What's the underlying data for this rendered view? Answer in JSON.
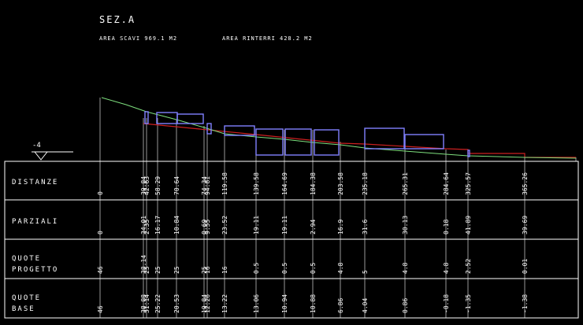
{
  "header": {
    "title": "SEZ.A",
    "area_scavi": "AREA SCAVI 969.1 M2",
    "area_rinterri": "AREA RINTERRI 428.2 M2"
  },
  "datum": {
    "label": "-4"
  },
  "rows": {
    "distanze": "DISTANZE",
    "parziali": "PARZIALI",
    "progetto_1": "QUOTE",
    "progetto_2": "PROGETTO",
    "base_1": "QUOTE",
    "base_2": "BASE"
  },
  "colors": {
    "background": "#000000",
    "grid": "#ffffff",
    "design_profile": "#cc2020",
    "ground_profile": "#7ee07e",
    "boxes": "#8080ff"
  },
  "columns": [
    {
      "distanza": "0",
      "parziale": "0",
      "progetto": "46",
      "base": "46"
    },
    {
      "distanza": "39.84",
      "parziale": "34.01",
      "progetto": "38.14",
      "base": "38.88"
    },
    {
      "distanza": "42.63",
      "parziale": "2.35",
      "progetto": "25",
      "base": "31.14"
    },
    {
      "distanza": "58.29",
      "parziale": "16.17",
      "progetto": "25",
      "base": "25.22"
    },
    {
      "distanza": "70.64",
      "parziale": "10.84",
      "progetto": "25",
      "base": "20.53"
    },
    {
      "distanza": "74.34",
      "parziale": "0.69",
      "progetto": "25",
      "base": "19.84"
    },
    {
      "distanza": "94.81",
      "parziale": "9.55",
      "progetto": "16",
      "base": "12.26"
    },
    {
      "distanza": "119.58",
      "parziale": "23.52",
      "progetto": "16",
      "base": "13.22"
    },
    {
      "distanza": "139.58",
      "parziale": "19.11",
      "progetto": "0.5",
      "base": "13.06"
    },
    {
      "distanza": "164.69",
      "parziale": "19.11",
      "progetto": "0.5",
      "base": "10.94"
    },
    {
      "distanza": "184.38",
      "parziale": "2.94",
      "progetto": "0.5",
      "base": "10.88"
    },
    {
      "distanza": "203.58",
      "parziale": "16.9",
      "progetto": "4.8",
      "base": "6.86"
    },
    {
      "distanza": "235.18",
      "parziale": "31.6",
      "progetto": "5",
      "base": "4.04"
    },
    {
      "distanza": "265.31",
      "parziale": "30.13",
      "progetto": "4.8",
      "base": "0.86"
    },
    {
      "distanza": "284.64",
      "parziale": "0.18",
      "progetto": "4.8",
      "base": "-0.18"
    },
    {
      "distanza": "325.57",
      "parziale": "41.89",
      "progetto": "2.52",
      "base": "-1.35"
    },
    {
      "distanza": "365.26",
      "parziale": "39.69",
      "progetto": "0.01",
      "base": "-1.38"
    }
  ]
}
